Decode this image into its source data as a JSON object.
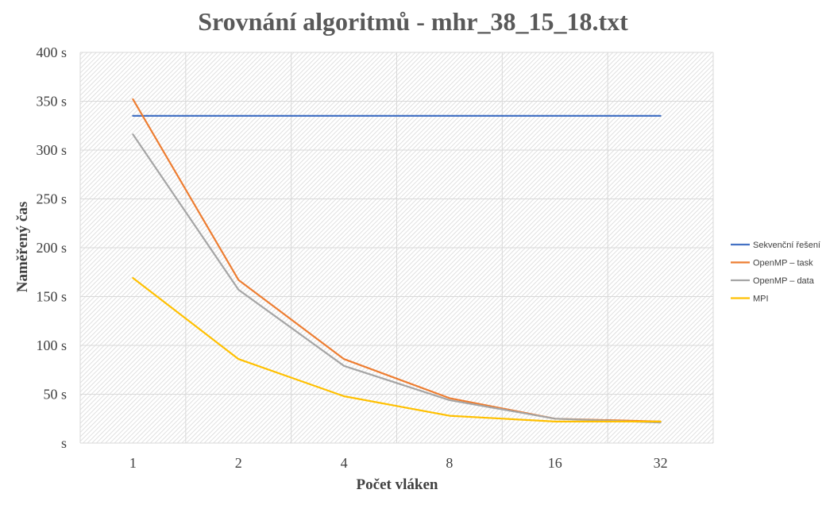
{
  "chart_data": {
    "type": "line",
    "title": "Srovnání algoritmů - mhr_38_15_18.txt",
    "xlabel": "Počet vláken",
    "ylabel": "Naměřený čas",
    "categories": [
      "1",
      "2",
      "4",
      "8",
      "16",
      "32"
    ],
    "yticks": [
      "s",
      "50 s",
      "100 s",
      "150 s",
      "200 s",
      "250 s",
      "300 s",
      "350 s",
      "400 s"
    ],
    "ylim": [
      0,
      400
    ],
    "grid": true,
    "legend_position": "right",
    "series": [
      {
        "name": "Sekvenční řešení",
        "color": "#4472c4",
        "values": [
          335,
          335,
          335,
          335,
          335,
          335
        ]
      },
      {
        "name": "OpenMP – task",
        "color": "#ed7d31",
        "values": [
          352,
          167,
          86,
          46,
          25,
          22
        ]
      },
      {
        "name": "OpenMP – data",
        "color": "#a5a5a5",
        "values": [
          316,
          157,
          79,
          44,
          25,
          21
        ]
      },
      {
        "name": "MPI",
        "color": "#ffc000",
        "values": [
          169,
          86,
          48,
          28,
          22,
          22
        ]
      }
    ]
  }
}
